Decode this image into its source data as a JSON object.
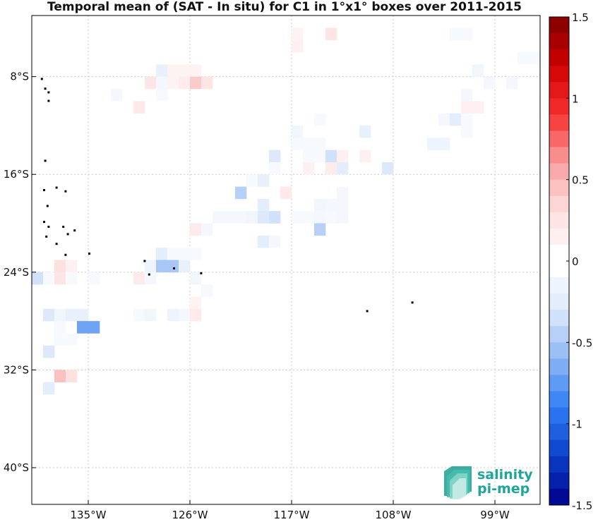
{
  "title": "Temporal mean of (SAT - In situ) for C1 in 1°x1° boxes over 2011-2015",
  "map": {
    "x_ticks": [
      "135°W",
      "126°W",
      "117°W",
      "108°W",
      "99°W"
    ],
    "y_ticks": [
      "8°S",
      "16°S",
      "24°S",
      "32°S",
      "40°S"
    ],
    "lon_range": [
      -140,
      -95
    ],
    "lat_range": [
      -43,
      -3
    ]
  },
  "colorbar": {
    "ticks": [
      "1.5",
      "1",
      "0.5",
      "0",
      "-0.5",
      "-1",
      "-1.5"
    ],
    "range": [
      -1.5,
      1.5
    ],
    "levels": 30,
    "neg_color": "#00008b",
    "pos_color": "#7f0000"
  },
  "logo": {
    "line1": "salinity",
    "line2": "pi-mep",
    "color": "#1fa69a"
  },
  "chart_data": {
    "type": "heatmap",
    "cell_deg": 1,
    "value_unit": "pss",
    "cells": [
      [
        -116.5,
        -4.5,
        0.12
      ],
      [
        -116.5,
        -5.5,
        0.15
      ],
      [
        -113.5,
        -4.5,
        0.25
      ],
      [
        -102.5,
        -4.5,
        -0.08
      ],
      [
        -101.5,
        -4.5,
        -0.08
      ],
      [
        -96.5,
        -6.5,
        -0.08
      ],
      [
        -95.5,
        -6.5,
        -0.08
      ],
      [
        -100.5,
        -7.5,
        -0.12
      ],
      [
        -128.5,
        -7.5,
        -0.2
      ],
      [
        -127.5,
        -7.5,
        0.12
      ],
      [
        -126.5,
        -7.5,
        0.12
      ],
      [
        -125.5,
        -7.5,
        0.12
      ],
      [
        -129.5,
        -8.5,
        0.25
      ],
      [
        -128.5,
        -8.5,
        -0.1
      ],
      [
        -127.5,
        -8.5,
        0.12
      ],
      [
        -126.5,
        -8.5,
        0.18
      ],
      [
        -125.5,
        -8.5,
        0.4
      ],
      [
        -124.5,
        -8.5,
        0.25
      ],
      [
        -128.5,
        -9.5,
        -0.08
      ],
      [
        -132.5,
        -9.5,
        -0.1
      ],
      [
        -130.5,
        -10.5,
        0.2
      ],
      [
        -99.5,
        -8.5,
        -0.1
      ],
      [
        -97.5,
        -8.5,
        -0.1
      ],
      [
        -101.5,
        -9.5,
        -0.1
      ],
      [
        -101.5,
        -10.5,
        0.15
      ],
      [
        -100.5,
        -10.5,
        0.15
      ],
      [
        -103.5,
        -11.5,
        -0.1
      ],
      [
        -102.5,
        -11.5,
        -0.25
      ],
      [
        -101.5,
        -11.5,
        -0.08
      ],
      [
        -101.5,
        -12.5,
        -0.08
      ],
      [
        -114.5,
        -11.5,
        -0.08
      ],
      [
        -116.5,
        -12.5,
        -0.12
      ],
      [
        -110.5,
        -12.5,
        -0.2
      ],
      [
        -115.5,
        -13.5,
        -0.08
      ],
      [
        -116.5,
        -13.5,
        -0.08
      ],
      [
        -114.5,
        -13.5,
        -0.08
      ],
      [
        -104.5,
        -13.5,
        -0.15
      ],
      [
        -103.5,
        -13.5,
        -0.15
      ],
      [
        -118.5,
        -14.5,
        -0.3
      ],
      [
        -115.5,
        -14.5,
        -0.08
      ],
      [
        -114.5,
        -14.5,
        -0.08
      ],
      [
        -113.5,
        -14.5,
        -0.35
      ],
      [
        -112.5,
        -14.5,
        0.15
      ],
      [
        -110.5,
        -14.5,
        0.15
      ],
      [
        -118.5,
        -15.5,
        -0.08
      ],
      [
        -115.5,
        -15.5,
        0.15
      ],
      [
        -113.5,
        -15.5,
        0.18
      ],
      [
        -112.5,
        -15.5,
        -0.25
      ],
      [
        -108.5,
        -15.5,
        -0.3
      ],
      [
        -120.5,
        -16.5,
        -0.08
      ],
      [
        -119.5,
        -16.5,
        -0.2
      ],
      [
        -121.5,
        -17.5,
        -0.45
      ],
      [
        -117.5,
        -17.5,
        0.2
      ],
      [
        -112.5,
        -17.5,
        -0.1
      ],
      [
        -119.5,
        -18.5,
        -0.25
      ],
      [
        -114.5,
        -18.5,
        -0.12
      ],
      [
        -113.5,
        -18.5,
        -0.1
      ],
      [
        -112.5,
        -18.5,
        -0.1
      ],
      [
        -123.5,
        -19.5,
        -0.1
      ],
      [
        -122.5,
        -19.5,
        -0.1
      ],
      [
        -121.5,
        -19.5,
        -0.1
      ],
      [
        -120.5,
        -19.5,
        -0.12
      ],
      [
        -119.5,
        -19.5,
        -0.3
      ],
      [
        -118.5,
        -19.5,
        -0.35
      ],
      [
        -116.5,
        -19.5,
        -0.08
      ],
      [
        -115.5,
        -19.5,
        -0.08
      ],
      [
        -114.5,
        -19.5,
        -0.1
      ],
      [
        -113.5,
        -19.5,
        -0.08
      ],
      [
        -112.5,
        -19.5,
        -0.1
      ],
      [
        -125.5,
        -20.5,
        0.2
      ],
      [
        -124.5,
        -20.5,
        -0.1
      ],
      [
        -114.5,
        -20.5,
        -0.45
      ],
      [
        -119.5,
        -21.5,
        -0.25
      ],
      [
        -118.5,
        -21.5,
        -0.1
      ],
      [
        -128.5,
        -22.5,
        -0.25
      ],
      [
        -127.5,
        -22.5,
        -0.08
      ],
      [
        -126.5,
        -22.5,
        -0.08
      ],
      [
        -125.5,
        -22.5,
        -0.08
      ],
      [
        -129.5,
        -23.5,
        -0.15
      ],
      [
        -128.5,
        -23.5,
        -0.5
      ],
      [
        -127.5,
        -23.5,
        -0.5
      ],
      [
        -126.5,
        -23.5,
        -0.2
      ],
      [
        -137.5,
        -23.5,
        0.3
      ],
      [
        -136.5,
        -23.5,
        0.15
      ],
      [
        -139.5,
        -24.5,
        -0.35
      ],
      [
        -138.5,
        -24.5,
        -0.08
      ],
      [
        -137.5,
        -24.5,
        0.25
      ],
      [
        -136.5,
        -24.5,
        -0.08
      ],
      [
        -134.5,
        -24.5,
        -0.08
      ],
      [
        -130.5,
        -24.5,
        0.2
      ],
      [
        -129.5,
        -24.5,
        -0.1
      ],
      [
        -125.5,
        -24.5,
        -0.12
      ],
      [
        -124.5,
        -25.5,
        -0.08
      ],
      [
        -125.5,
        -26.5,
        0.12
      ],
      [
        -138.5,
        -27.5,
        -0.3
      ],
      [
        -137.5,
        -27.5,
        -0.12
      ],
      [
        -136.5,
        -27.5,
        -0.2
      ],
      [
        -135.5,
        -27.5,
        -0.2
      ],
      [
        -130.5,
        -27.5,
        -0.08
      ],
      [
        -129.5,
        -27.5,
        -0.12
      ],
      [
        -127.5,
        -27.5,
        -0.15
      ],
      [
        -126.5,
        -27.5,
        -0.1
      ],
      [
        -125.5,
        -27.5,
        0.2
      ],
      [
        -137.5,
        -28.5,
        -0.08
      ],
      [
        -135.5,
        -28.5,
        -0.7
      ],
      [
        -134.5,
        -28.5,
        -0.7
      ],
      [
        -137.5,
        -29.5,
        -0.08
      ],
      [
        -136.5,
        -29.5,
        -0.08
      ],
      [
        -138.5,
        -30.5,
        -0.3
      ],
      [
        -137.5,
        -32.5,
        0.45
      ],
      [
        -136.5,
        -32.5,
        0.3
      ],
      [
        -138.5,
        -33.5,
        -0.25
      ]
    ]
  }
}
